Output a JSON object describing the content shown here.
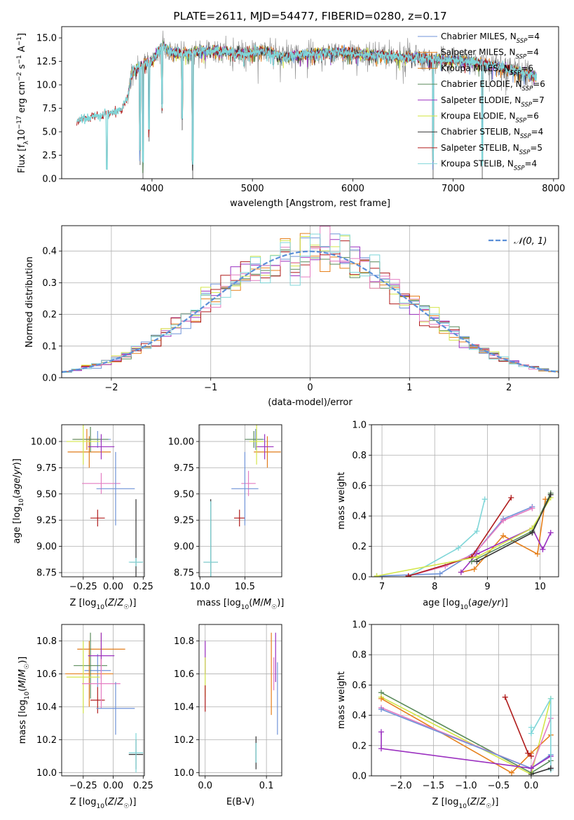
{
  "title": "PLATE=2611, MJD=54477, FIBERID=0280, z=0.17",
  "colors": {
    "chabrier_miles": "#6f93d8",
    "salpeter_miles": "#e6801c",
    "kroupa_miles": "#e07b1a",
    "chabrier_elodie": "#5a8a5a",
    "salpeter_elodie": "#9b30c0",
    "kroupa_elodie": "#d4e64a",
    "chabrier_stelib": "#333333",
    "salpeter_stelib": "#b01c1c",
    "kroupa_stelib": "#7fd6d8",
    "pink": "#e47cc2",
    "normal": "#5b8fd8",
    "data_grey": "#808080"
  },
  "chart_data": [
    {
      "id": "spectrum",
      "type": "line",
      "title": "PLATE=2611, MJD=54477, FIBERID=0280, z=0.17",
      "xlabel": "wavelength [Angstrom, rest frame]",
      "ylabel_parts": [
        "Flux [f",
        "λ",
        "10",
        "−17",
        " erg cm",
        "−2",
        " s",
        "−1",
        " A",
        "−1",
        "]"
      ],
      "xlim": [
        3100,
        8050
      ],
      "ylim": [
        0,
        16.2
      ],
      "xticks": [
        4000,
        5000,
        6000,
        7000,
        8000
      ],
      "yticks": [
        0.0,
        2.5,
        5.0,
        7.5,
        10.0,
        12.5,
        15.0
      ],
      "ytick_labels": [
        "0.0",
        "2.5",
        "5.0",
        "7.5",
        "10.0",
        "12.5",
        "15.0"
      ],
      "continuum": {
        "x": [
          3250,
          3400,
          3550,
          3700,
          3760,
          3800,
          3900,
          4000,
          4100,
          4200,
          4350,
          4500,
          4700,
          4900,
          5100,
          5300,
          5500,
          5700,
          5900,
          6100,
          6300,
          6500,
          6700,
          6900,
          7100,
          7300,
          7500,
          7700,
          7830
        ],
        "y": [
          6.2,
          6.6,
          6.9,
          7.4,
          8.8,
          11.3,
          12.1,
          12.5,
          14.2,
          13.5,
          13.4,
          13.6,
          13.6,
          13.3,
          13.7,
          13.0,
          13.2,
          13.4,
          13.5,
          13.2,
          13.2,
          12.9,
          12.9,
          12.7,
          12.6,
          12.3,
          11.8,
          11.3,
          10.9
        ]
      },
      "absorption_lines": [
        {
          "x": 3550,
          "depth_to": 0.0
        },
        {
          "x": 3880,
          "depth_to": 1.5
        },
        {
          "x": 3910,
          "depth_to": 0.0
        },
        {
          "x": 3970,
          "depth_to": 4.0
        },
        {
          "x": 4100,
          "depth_to": 7.0
        },
        {
          "x": 4300,
          "depth_to": 5.2
        },
        {
          "x": 4405,
          "depth_to": 0.0
        },
        {
          "x": 6800,
          "depth_to": 0.0
        },
        {
          "x": 7290,
          "depth_to": 0.0
        }
      ],
      "series": [
        {
          "name": "Chabrier MILES, N_SSP=4",
          "label": "Chabrier MILES, N",
          "n": "=4",
          "color": "#6f93d8"
        },
        {
          "name": "Salpeter MILES, N_SSP=4",
          "label": "Salpeter MILES, N",
          "n": "=4",
          "color": "#e6801c"
        },
        {
          "name": "Kroupa MILES, N_SSP=6",
          "label": "Kroupa MILES, N",
          "n": "=6",
          "color": "#e07b1a"
        },
        {
          "name": "Chabrier ELODIE, N_SSP=6",
          "label": "Chabrier ELODIE, N",
          "n": "=6",
          "color": "#5a8a5a"
        },
        {
          "name": "Salpeter ELODIE, N_SSP=7",
          "label": "Salpeter ELODIE, N",
          "n": "=7",
          "color": "#9b30c0"
        },
        {
          "name": "Kroupa ELODIE, N_SSP=6",
          "label": "Kroupa ELODIE, N",
          "n": "=6",
          "color": "#d4e64a"
        },
        {
          "name": "Chabrier STELIB, N_SSP=4",
          "label": "Chabrier STELIB, N",
          "n": "=4",
          "color": "#333333"
        },
        {
          "name": "Salpeter STELIB, N_SSP=5",
          "label": "Salpeter STELIB, N",
          "n": "=5",
          "color": "#b01c1c"
        },
        {
          "name": "Kroupa STELIB, N_SSP=4",
          "label": "Kroupa STELIB, N",
          "n": "=4",
          "color": "#7fd6d8"
        }
      ],
      "legend_sub": "SSP",
      "legend": "top-right"
    },
    {
      "id": "residuals",
      "type": "histogram",
      "xlabel": "(data-model)/error",
      "ylabel": "Normed distribution",
      "xlim": [
        -2.5,
        2.5
      ],
      "ylim": [
        0,
        0.48
      ],
      "xticks": [
        -2,
        -1,
        0,
        1,
        2
      ],
      "xtick_labels": [
        "−2",
        "−1",
        "0",
        "1",
        "2"
      ],
      "yticks": [
        0.0,
        0.1,
        0.2,
        0.3,
        0.4
      ],
      "ytick_labels": [
        "0.0",
        "0.1",
        "0.2",
        "0.3",
        "0.4"
      ],
      "bin_width": 0.1,
      "legend_label": "𝒩(0, 1)",
      "legend": "top-right",
      "grid": true
    },
    {
      "id": "age_vs_Z",
      "type": "scatter",
      "xlabel": "Z [log10(Z/Z☉)]",
      "ylabel": "age [log10(age/yr)]",
      "xlim": [
        -0.43,
        0.26
      ],
      "ylim": [
        8.71,
        10.16
      ],
      "xticks": [
        -0.25,
        0.0,
        0.25
      ],
      "xtick_labels": [
        "−0.25",
        "0.00",
        "0.25"
      ],
      "yticks": [
        8.75,
        9.0,
        9.25,
        9.5,
        9.75,
        10.0
      ],
      "ytick_labels": [
        "8.75",
        "9.00",
        "9.25",
        "9.50",
        "9.75",
        "10.00"
      ],
      "points": [
        {
          "x": -0.13,
          "y": 10.02,
          "xe": 0.11,
          "ye": 0.08,
          "color": "#6f93d8"
        },
        {
          "x": -0.22,
          "y": 10.02,
          "xe": 0.11,
          "ye": 0.1,
          "color": "#e6801c"
        },
        {
          "x": -0.2,
          "y": 9.9,
          "xe": 0.18,
          "ye": 0.15,
          "color": "#e07b1a"
        },
        {
          "x": -0.19,
          "y": 10.02,
          "xe": 0.15,
          "ye": 0.12,
          "color": "#5a8a5a"
        },
        {
          "x": -0.1,
          "y": 9.95,
          "xe": 0.11,
          "ye": 0.12,
          "color": "#9b30c0"
        },
        {
          "x": -0.25,
          "y": 10.0,
          "xe": 0.14,
          "ye": 0.22,
          "color": "#d4e64a"
        },
        {
          "x": 0.19,
          "y": 8.85,
          "xe": 0.05,
          "ye": 0.6,
          "color": "#333333"
        },
        {
          "x": -0.13,
          "y": 9.27,
          "xe": 0.06,
          "ye": 0.08,
          "color": "#b01c1c"
        },
        {
          "x": 0.19,
          "y": 8.85,
          "xe": 0.06,
          "ye": 0.04,
          "color": "#7fd6d8"
        },
        {
          "x": -0.1,
          "y": 9.6,
          "xe": 0.16,
          "ye": 0.1,
          "color": "#e47cc2"
        },
        {
          "x": 0.02,
          "y": 9.55,
          "xe": 0.16,
          "ye": 0.35,
          "color": "#6f93d8"
        }
      ]
    },
    {
      "id": "age_vs_mass",
      "type": "scatter",
      "xlabel": "mass [log10(M/M☉)]",
      "ylabel": "",
      "xlim": [
        9.99,
        10.91
      ],
      "ylim": [
        8.71,
        10.16
      ],
      "xticks": [
        10.0,
        10.5
      ],
      "xtick_labels": [
        "10.0",
        "10.5"
      ],
      "yticks": [
        8.75,
        9.0,
        9.25,
        9.5,
        9.75,
        10.0
      ],
      "ytick_labels": [
        "8.75",
        "9.00",
        "9.25",
        "9.50",
        "9.75",
        "10.00"
      ],
      "points": [
        {
          "x": 10.62,
          "y": 10.02,
          "xe": 0.1,
          "ye": 0.1,
          "color": "#6f93d8"
        },
        {
          "x": 10.75,
          "y": 9.9,
          "xe": 0.15,
          "ye": 0.15,
          "color": "#e07b1a"
        },
        {
          "x": 10.6,
          "y": 10.02,
          "xe": 0.1,
          "ye": 0.08,
          "color": "#5a8a5a"
        },
        {
          "x": 10.72,
          "y": 9.95,
          "xe": 0.1,
          "ye": 0.12,
          "color": "#9b30c0"
        },
        {
          "x": 10.63,
          "y": 10.0,
          "xe": 0.08,
          "ye": 0.22,
          "color": "#d4e64a"
        },
        {
          "x": 10.12,
          "y": 8.85,
          "xe": 0.08,
          "ye": 0.6,
          "color": "#333333"
        },
        {
          "x": 10.44,
          "y": 9.27,
          "xe": 0.06,
          "ye": 0.08,
          "color": "#b01c1c"
        },
        {
          "x": 10.12,
          "y": 8.85,
          "xe": 0.08,
          "ye": 0.58,
          "color": "#7fd6d8"
        },
        {
          "x": 10.54,
          "y": 9.6,
          "xe": 0.08,
          "ye": 0.12,
          "color": "#e47cc2"
        },
        {
          "x": 10.5,
          "y": 9.55,
          "xe": 0.15,
          "ye": 0.35,
          "color": "#6f93d8"
        }
      ]
    },
    {
      "id": "mass_weight_vs_age",
      "type": "line",
      "xlabel": "age [log10(age/yr)]",
      "ylabel": "mass weight",
      "xlim": [
        6.8,
        10.35
      ],
      "ylim": [
        0,
        1.0
      ],
      "xticks": [
        7,
        8,
        9,
        10
      ],
      "xtick_labels": [
        "7",
        "8",
        "9",
        "10"
      ],
      "yticks": [
        0.0,
        0.2,
        0.4,
        0.6,
        0.8,
        1.0
      ],
      "ytick_labels": [
        "0.0",
        "0.2",
        "0.4",
        "0.6",
        "0.8",
        "1.0"
      ],
      "series": [
        {
          "color": "#7fd6d8",
          "x": [
            7.5,
            8.45,
            8.8,
            8.95
          ],
          "y": [
            0.005,
            0.19,
            0.3,
            0.51
          ]
        },
        {
          "color": "#6f93d8",
          "x": [
            6.9,
            8.1,
            8.8,
            9.3,
            9.85
          ],
          "y": [
            0.005,
            0.02,
            0.17,
            0.38,
            0.46
          ]
        },
        {
          "color": "#e47cc2",
          "x": [
            7.5,
            8.2,
            8.75,
            9.3,
            9.85
          ],
          "y": [
            0.005,
            0.07,
            0.15,
            0.37,
            0.45
          ]
        },
        {
          "color": "#b01c1c",
          "x": [
            7.5,
            8.7,
            9.45
          ],
          "y": [
            0.005,
            0.13,
            0.52
          ]
        },
        {
          "color": "#e6801c",
          "x": [
            8.5,
            8.75,
            9.3,
            9.95,
            10.1
          ],
          "y": [
            0.03,
            0.05,
            0.27,
            0.15,
            0.51
          ]
        },
        {
          "color": "#9b30c0",
          "x": [
            8.5,
            8.8,
            9.85,
            10.05,
            10.2
          ],
          "y": [
            0.03,
            0.15,
            0.32,
            0.18,
            0.29
          ]
        },
        {
          "color": "#5a8a5a",
          "x": [
            8.7,
            9.85,
            10.2
          ],
          "y": [
            0.1,
            0.3,
            0.55
          ]
        },
        {
          "color": "#d4e64a",
          "x": [
            6.9,
            8.8,
            9.85,
            10.2
          ],
          "y": [
            0.005,
            0.13,
            0.32,
            0.52
          ]
        },
        {
          "color": "#333333",
          "x": [
            8.8,
            9.85,
            10.2
          ],
          "y": [
            0.1,
            0.29,
            0.54
          ]
        }
      ]
    },
    {
      "id": "mass_vs_Z",
      "type": "scatter",
      "xlabel": "Z [log10(Z/Z☉)]",
      "ylabel": "mass [log10(M/M☉)]",
      "xlim": [
        -0.43,
        0.26
      ],
      "ylim": [
        9.98,
        10.9
      ],
      "xticks": [
        -0.25,
        0.0,
        0.25
      ],
      "xtick_labels": [
        "−0.25",
        "0.00",
        "0.25"
      ],
      "yticks": [
        10.0,
        10.2,
        10.4,
        10.6,
        10.8
      ],
      "ytick_labels": [
        "10.0",
        "10.2",
        "10.4",
        "10.6",
        "10.8"
      ],
      "points": [
        {
          "x": -0.13,
          "y": 10.62,
          "xe": 0.11,
          "ye": 0.1,
          "color": "#6f93d8"
        },
        {
          "x": -0.2,
          "y": 10.6,
          "xe": 0.2,
          "ye": 0.2,
          "color": "#e6801c"
        },
        {
          "x": -0.1,
          "y": 10.75,
          "xe": 0.2,
          "ye": 0.1,
          "color": "#e07b1a"
        },
        {
          "x": -0.19,
          "y": 10.65,
          "xe": 0.14,
          "ye": 0.2,
          "color": "#5a8a5a"
        },
        {
          "x": -0.1,
          "y": 10.71,
          "xe": 0.11,
          "ye": 0.14,
          "color": "#9b30c0"
        },
        {
          "x": -0.25,
          "y": 10.58,
          "xe": 0.14,
          "ye": 0.22,
          "color": "#d4e64a"
        },
        {
          "x": 0.19,
          "y": 10.11,
          "xe": 0.06,
          "ye": 0.09,
          "color": "#333333"
        },
        {
          "x": -0.13,
          "y": 10.44,
          "xe": 0.06,
          "ye": 0.08,
          "color": "#b01c1c"
        },
        {
          "x": 0.19,
          "y": 10.12,
          "xe": 0.06,
          "ye": 0.12,
          "color": "#7fd6d8"
        },
        {
          "x": -0.1,
          "y": 10.54,
          "xe": 0.16,
          "ye": 0.15,
          "color": "#e47cc2"
        },
        {
          "x": 0.02,
          "y": 10.39,
          "xe": 0.16,
          "ye": 0.16,
          "color": "#6f93d8"
        }
      ]
    },
    {
      "id": "mass_vs_ebv",
      "type": "scatter",
      "xlabel": "E(B-V)",
      "ylabel": "",
      "xlim": [
        -0.01,
        0.125
      ],
      "ylim": [
        9.98,
        10.9
      ],
      "xticks": [
        0.0,
        0.1
      ],
      "xtick_labels": [
        "0.0",
        "0.1"
      ],
      "yticks": [
        10.0,
        10.2,
        10.4,
        10.6,
        10.8
      ],
      "ytick_labels": [
        "10.0",
        "10.2",
        "10.4",
        "10.6",
        "10.8"
      ],
      "points": [
        {
          "x": 0.0,
          "y": 10.7,
          "xe": 0,
          "ye": 0.1,
          "color": "#9b30c0"
        },
        {
          "x": 0.0,
          "y": 10.58,
          "xe": 0,
          "ye": 0.12,
          "color": "#d4e64a"
        },
        {
          "x": 0.0,
          "y": 10.45,
          "xe": 0,
          "ye": 0.08,
          "color": "#b01c1c"
        },
        {
          "x": 0.083,
          "y": 10.12,
          "xe": 0,
          "ye": 0.1,
          "color": "#333333"
        },
        {
          "x": 0.083,
          "y": 10.12,
          "xe": 0,
          "ye": 0.06,
          "color": "#7fd6d8"
        },
        {
          "x": 0.108,
          "y": 10.6,
          "xe": 0,
          "ye": 0.25,
          "color": "#e6801c"
        },
        {
          "x": 0.115,
          "y": 10.7,
          "xe": 0,
          "ye": 0.15,
          "color": "#9b30c0"
        },
        {
          "x": 0.118,
          "y": 10.45,
          "xe": 0,
          "ye": 0.22,
          "color": "#6f93d8"
        },
        {
          "x": 0.112,
          "y": 10.6,
          "xe": 0,
          "ye": 0.1,
          "color": "#e47cc2"
        }
      ]
    },
    {
      "id": "mass_weight_vs_Z",
      "type": "line",
      "xlabel": "Z [log10(Z/Z☉)]",
      "ylabel": "mass weight",
      "xlim": [
        -2.45,
        0.42
      ],
      "ylim": [
        0,
        1.0
      ],
      "xticks": [
        -2.0,
        -1.5,
        -1.0,
        -0.5,
        0.0
      ],
      "xtick_labels": [
        "−2.0",
        "−1.5",
        "−1.0",
        "−0.5",
        "0.0"
      ],
      "yticks": [
        0.0,
        0.2,
        0.4,
        0.6,
        0.8,
        1.0
      ],
      "ytick_labels": [
        "0.0",
        "0.2",
        "0.4",
        "0.6",
        "0.8",
        "1.0"
      ],
      "series": [
        {
          "color": "#5a8a5a",
          "x": [
            -2.3,
            0.0,
            0.3
          ],
          "y": [
            0.55,
            0.02,
            0.1
          ]
        },
        {
          "color": "#d4e64a",
          "x": [
            -2.3,
            0.0,
            0.3
          ],
          "y": [
            0.52,
            0.01,
            0.51
          ]
        },
        {
          "color": "#e6801c",
          "x": [
            -2.3,
            -0.3,
            0.0,
            0.3
          ],
          "y": [
            0.51,
            0.02,
            0.15,
            0.27
          ]
        },
        {
          "color": "#e47cc2",
          "x": [
            -2.3,
            0.0,
            0.3
          ],
          "y": [
            0.45,
            0.05,
            0.38
          ]
        },
        {
          "color": "#6f93d8",
          "x": [
            -2.3,
            0.0,
            0.3
          ],
          "y": [
            0.44,
            0.05,
            0.14
          ]
        },
        {
          "color": "#9b30c0",
          "x": [
            -2.3,
            -2.3,
            0.0,
            0.3,
            0.3
          ],
          "y": [
            0.29,
            0.18,
            0.05,
            0.13,
            0.05
          ]
        },
        {
          "color": "#b01c1c",
          "x": [
            -0.4,
            -0.05,
            0.0
          ],
          "y": [
            0.52,
            0.15,
            0.13
          ]
        },
        {
          "color": "#7fd6d8",
          "x": [
            0.0,
            0.0,
            0.3,
            0.3
          ],
          "y": [
            0.32,
            0.28,
            0.51,
            0.04
          ]
        },
        {
          "color": "#333333",
          "x": [
            0.0,
            0.3
          ],
          "y": [
            0.01,
            0.05
          ]
        }
      ]
    }
  ]
}
